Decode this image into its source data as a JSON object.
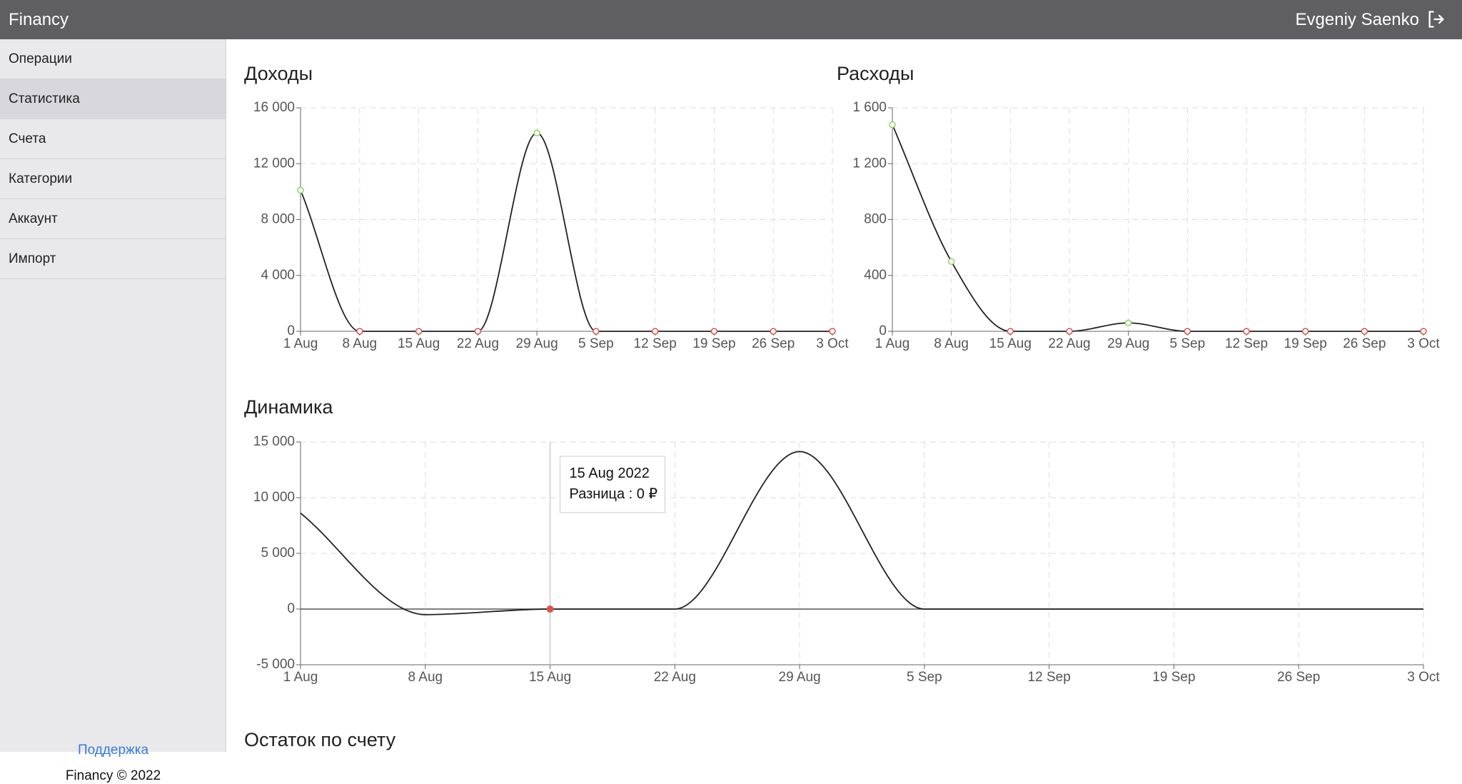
{
  "header": {
    "brand": "Financy",
    "user": "Evgeniy Saenko"
  },
  "sidebar": {
    "items": [
      "Операции",
      "Статистика",
      "Счета",
      "Категории",
      "Аккаунт",
      "Импорт"
    ],
    "active": 1,
    "support": "Поддержка",
    "footer": "Financy © 2022"
  },
  "section_title": "Остаток по счету",
  "chart_data": [
    {
      "type": "line",
      "title": "Доходы",
      "categories": [
        "1 Aug",
        "8 Aug",
        "15 Aug",
        "22 Aug",
        "29 Aug",
        "5 Sep",
        "12 Sep",
        "19 Sep",
        "26 Sep",
        "3 Oct"
      ],
      "series": [
        {
          "color": "#222222",
          "values": [
            10100,
            0,
            0,
            0,
            14200,
            0,
            0,
            0,
            0,
            0
          ]
        }
      ],
      "marker_color": "#8fd16a",
      "zero_marker_color": "#d9534f",
      "ylim": [
        0,
        16000
      ],
      "yticks": [
        0,
        {
          "value": 4000,
          "label": "4 000"
        },
        {
          "value": 8000,
          "label": "8 000"
        },
        {
          "value": 12000,
          "label": "12 000"
        },
        {
          "value": 16000,
          "label": "16 000"
        }
      ],
      "grid": true
    },
    {
      "type": "line",
      "title": "Расходы",
      "categories": [
        "1 Aug",
        "8 Aug",
        "15 Aug",
        "22 Aug",
        "29 Aug",
        "5 Sep",
        "12 Sep",
        "19 Sep",
        "26 Sep",
        "3 Oct"
      ],
      "series": [
        {
          "color": "#222222",
          "values": [
            1480,
            500,
            0,
            0,
            60,
            0,
            0,
            0,
            0,
            0
          ]
        }
      ],
      "marker_color": "#8fd16a",
      "zero_marker_color": "#d9534f",
      "ylim": [
        0,
        1600
      ],
      "yticks": [
        0,
        400,
        800,
        {
          "value": 1200,
          "label": "1 200"
        },
        {
          "value": 1600,
          "label": "1 600"
        }
      ],
      "grid": true
    },
    {
      "type": "line",
      "title": "Динамика",
      "categories": [
        "1 Aug",
        "8 Aug",
        "15 Aug",
        "22 Aug",
        "29 Aug",
        "5 Sep",
        "12 Sep",
        "19 Sep",
        "26 Sep",
        "3 Oct"
      ],
      "series": [
        {
          "color": "#222222",
          "values": [
            8620,
            -500,
            0,
            0,
            14140,
            0,
            0,
            0,
            0,
            0
          ]
        }
      ],
      "zero_marker_color": "#d9534f",
      "ylim": [
        -5000,
        15000
      ],
      "yticks": [
        {
          "value": -5000,
          "label": "-5 000"
        },
        0,
        {
          "value": 5000,
          "label": "5 000"
        },
        {
          "value": 10000,
          "label": "10 000"
        },
        {
          "value": 15000,
          "label": "15 000"
        }
      ],
      "grid": true,
      "tooltip": {
        "index": 2,
        "title": "15 Aug 2022",
        "text": "Разница : 0 ₽"
      }
    }
  ]
}
